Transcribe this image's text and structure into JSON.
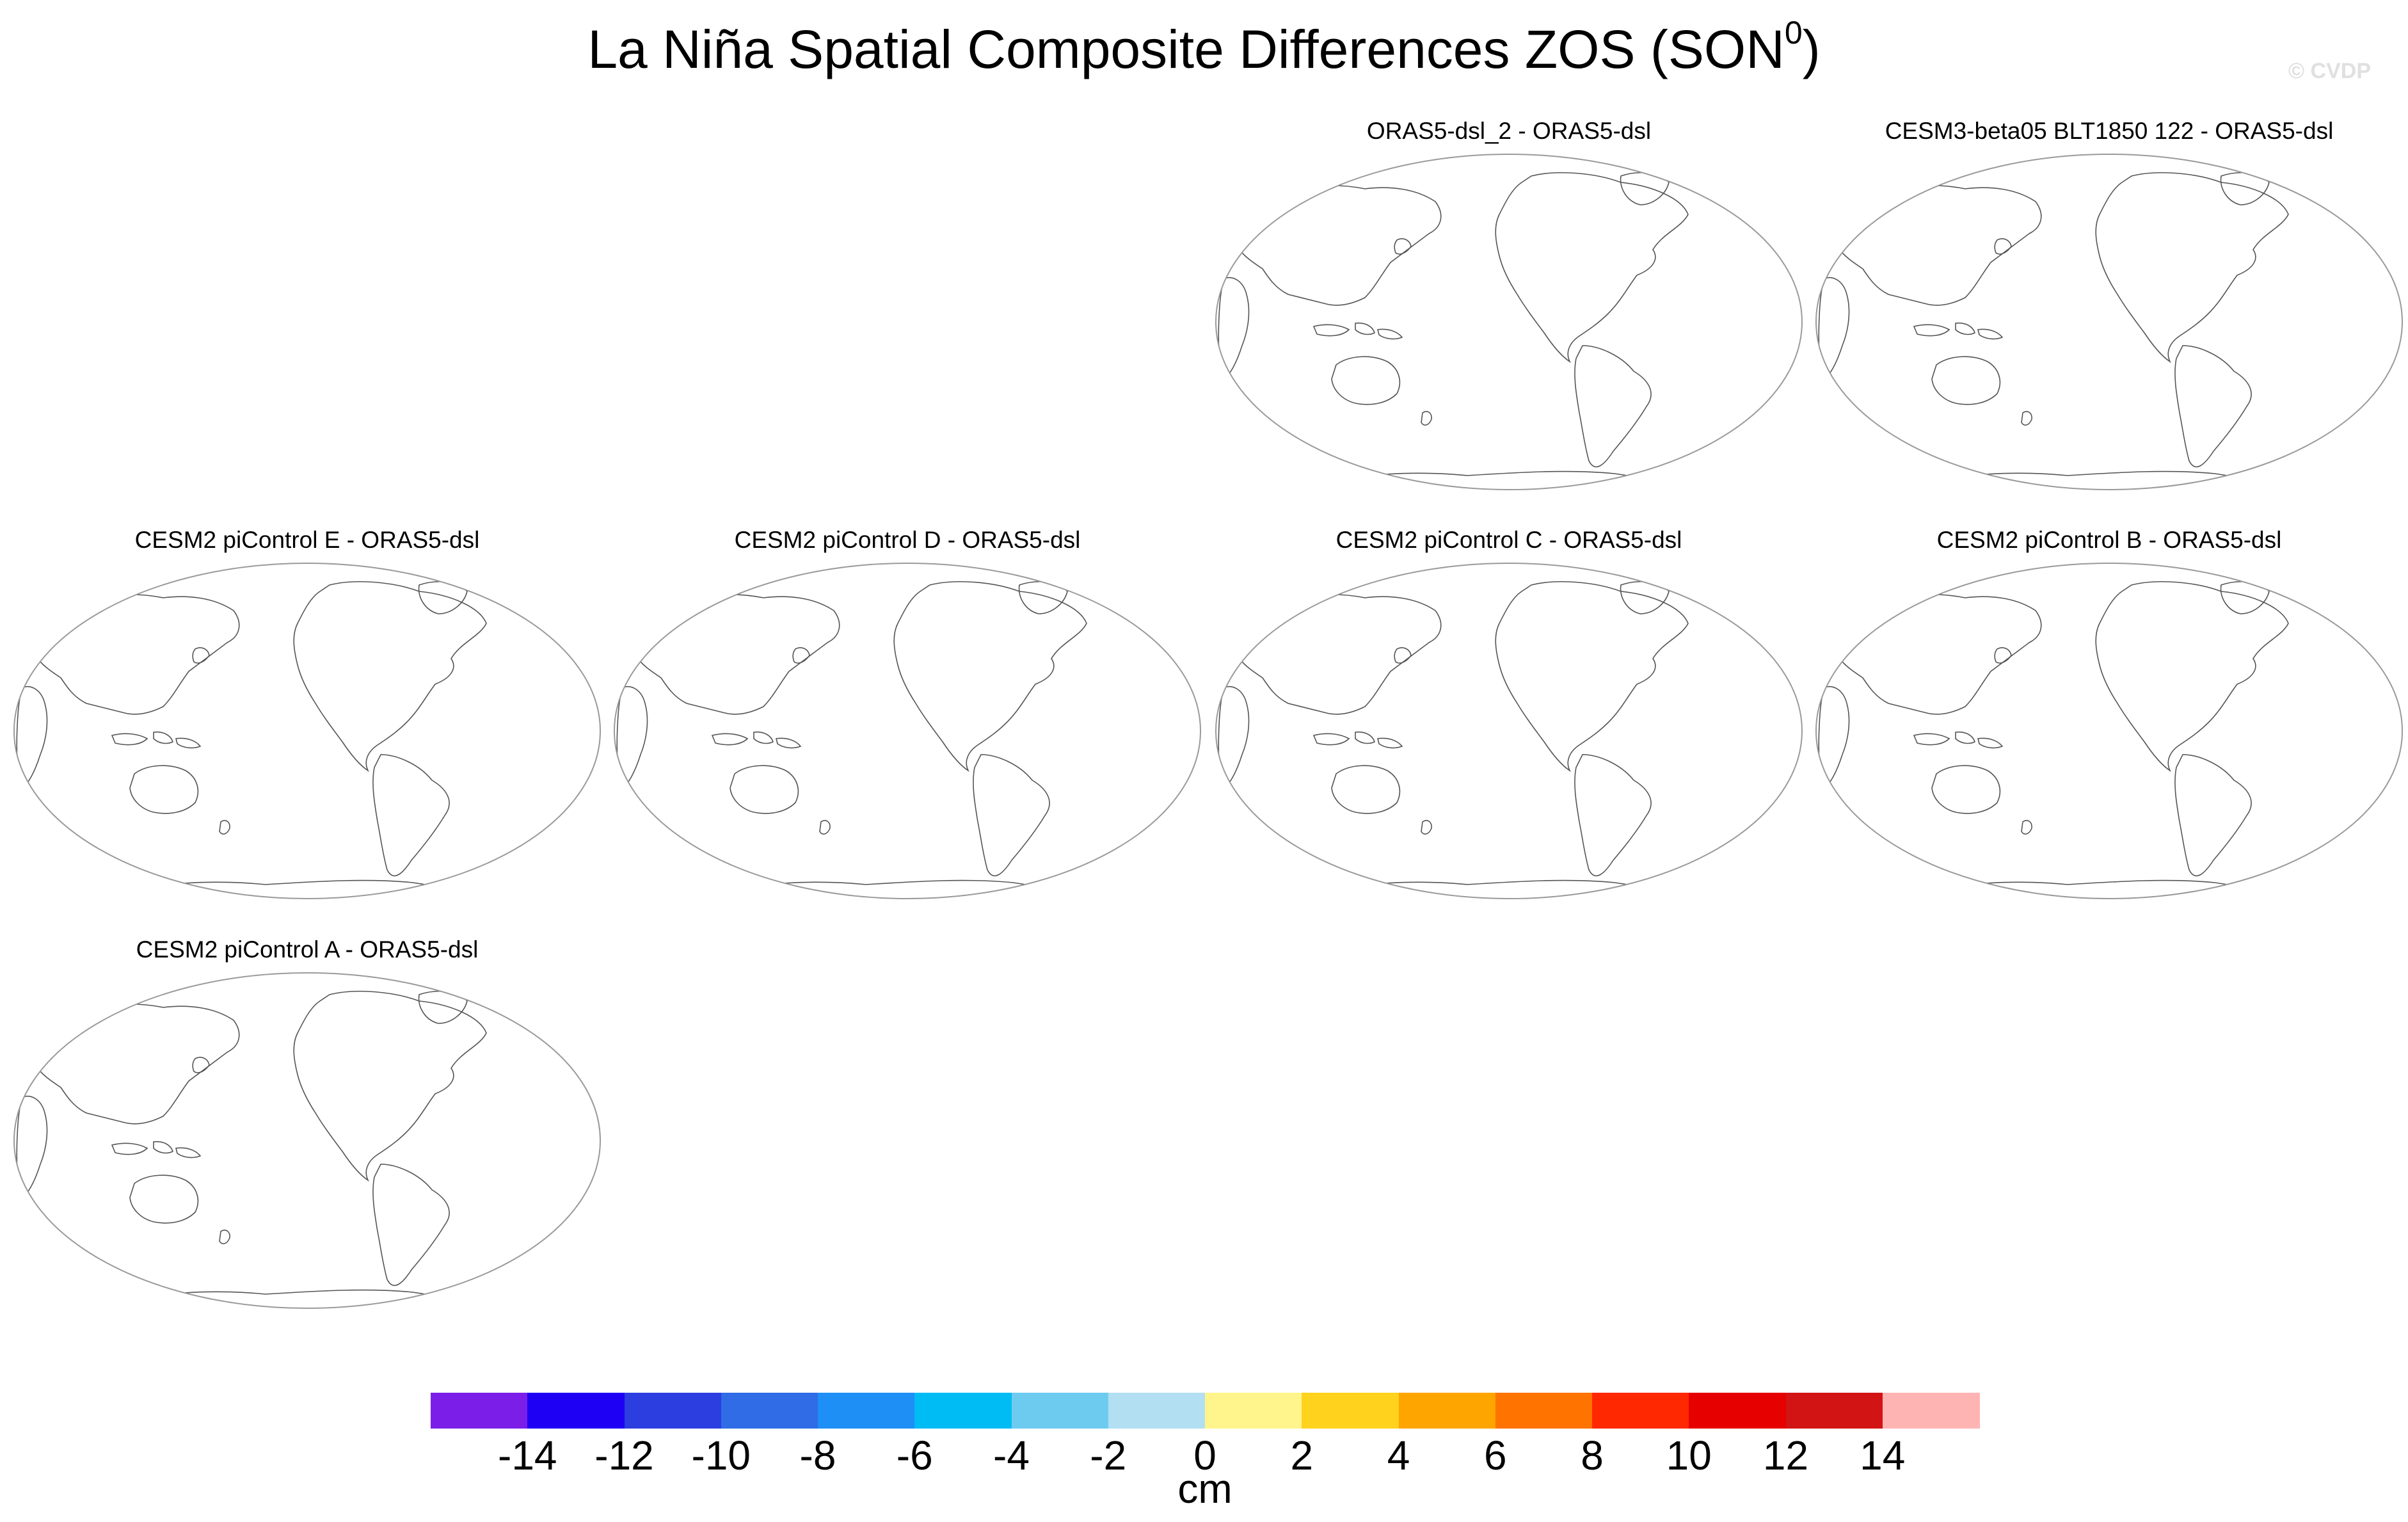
{
  "figure": {
    "title_main": "La Niña Spatial Composite Differences ZOS (SON",
    "title_superscript": "0",
    "title_close": ")",
    "watermark": "© CVDP"
  },
  "panels": [
    {
      "id": "orasdsl2",
      "title": "ORAS5-dsl_2 - ORAS5-dsl"
    },
    {
      "id": "cesm3",
      "title": "CESM3-beta05 BLT1850 122 - ORAS5-dsl"
    },
    {
      "id": "cesm2e",
      "title": "CESM2 piControl E - ORAS5-dsl"
    },
    {
      "id": "cesm2d",
      "title": "CESM2 piControl D - ORAS5-dsl"
    },
    {
      "id": "cesm2c",
      "title": "CESM2 piControl C - ORAS5-dsl"
    },
    {
      "id": "cesm2b",
      "title": "CESM2 piControl B - ORAS5-dsl"
    },
    {
      "id": "cesm2a",
      "title": "CESM2 piControl A - ORAS5-dsl"
    }
  ],
  "colorbar": {
    "units": "cm",
    "tick_labels": [
      "-14",
      "-12",
      "-10",
      "-8",
      "-6",
      "-4",
      "-2",
      "0",
      "2",
      "4",
      "6",
      "8",
      "10",
      "12",
      "14"
    ],
    "colors": [
      "#7b1fe8",
      "#1e00f5",
      "#2c3ee0",
      "#2f6ce6",
      "#1e8ff5",
      "#00bcf5",
      "#6ecbf0",
      "#b2dff2",
      "#fff58c",
      "#ffd21e",
      "#ffa500",
      "#ff7300",
      "#ff2800",
      "#e60000",
      "#d21414",
      "#ffb4b4"
    ]
  }
}
